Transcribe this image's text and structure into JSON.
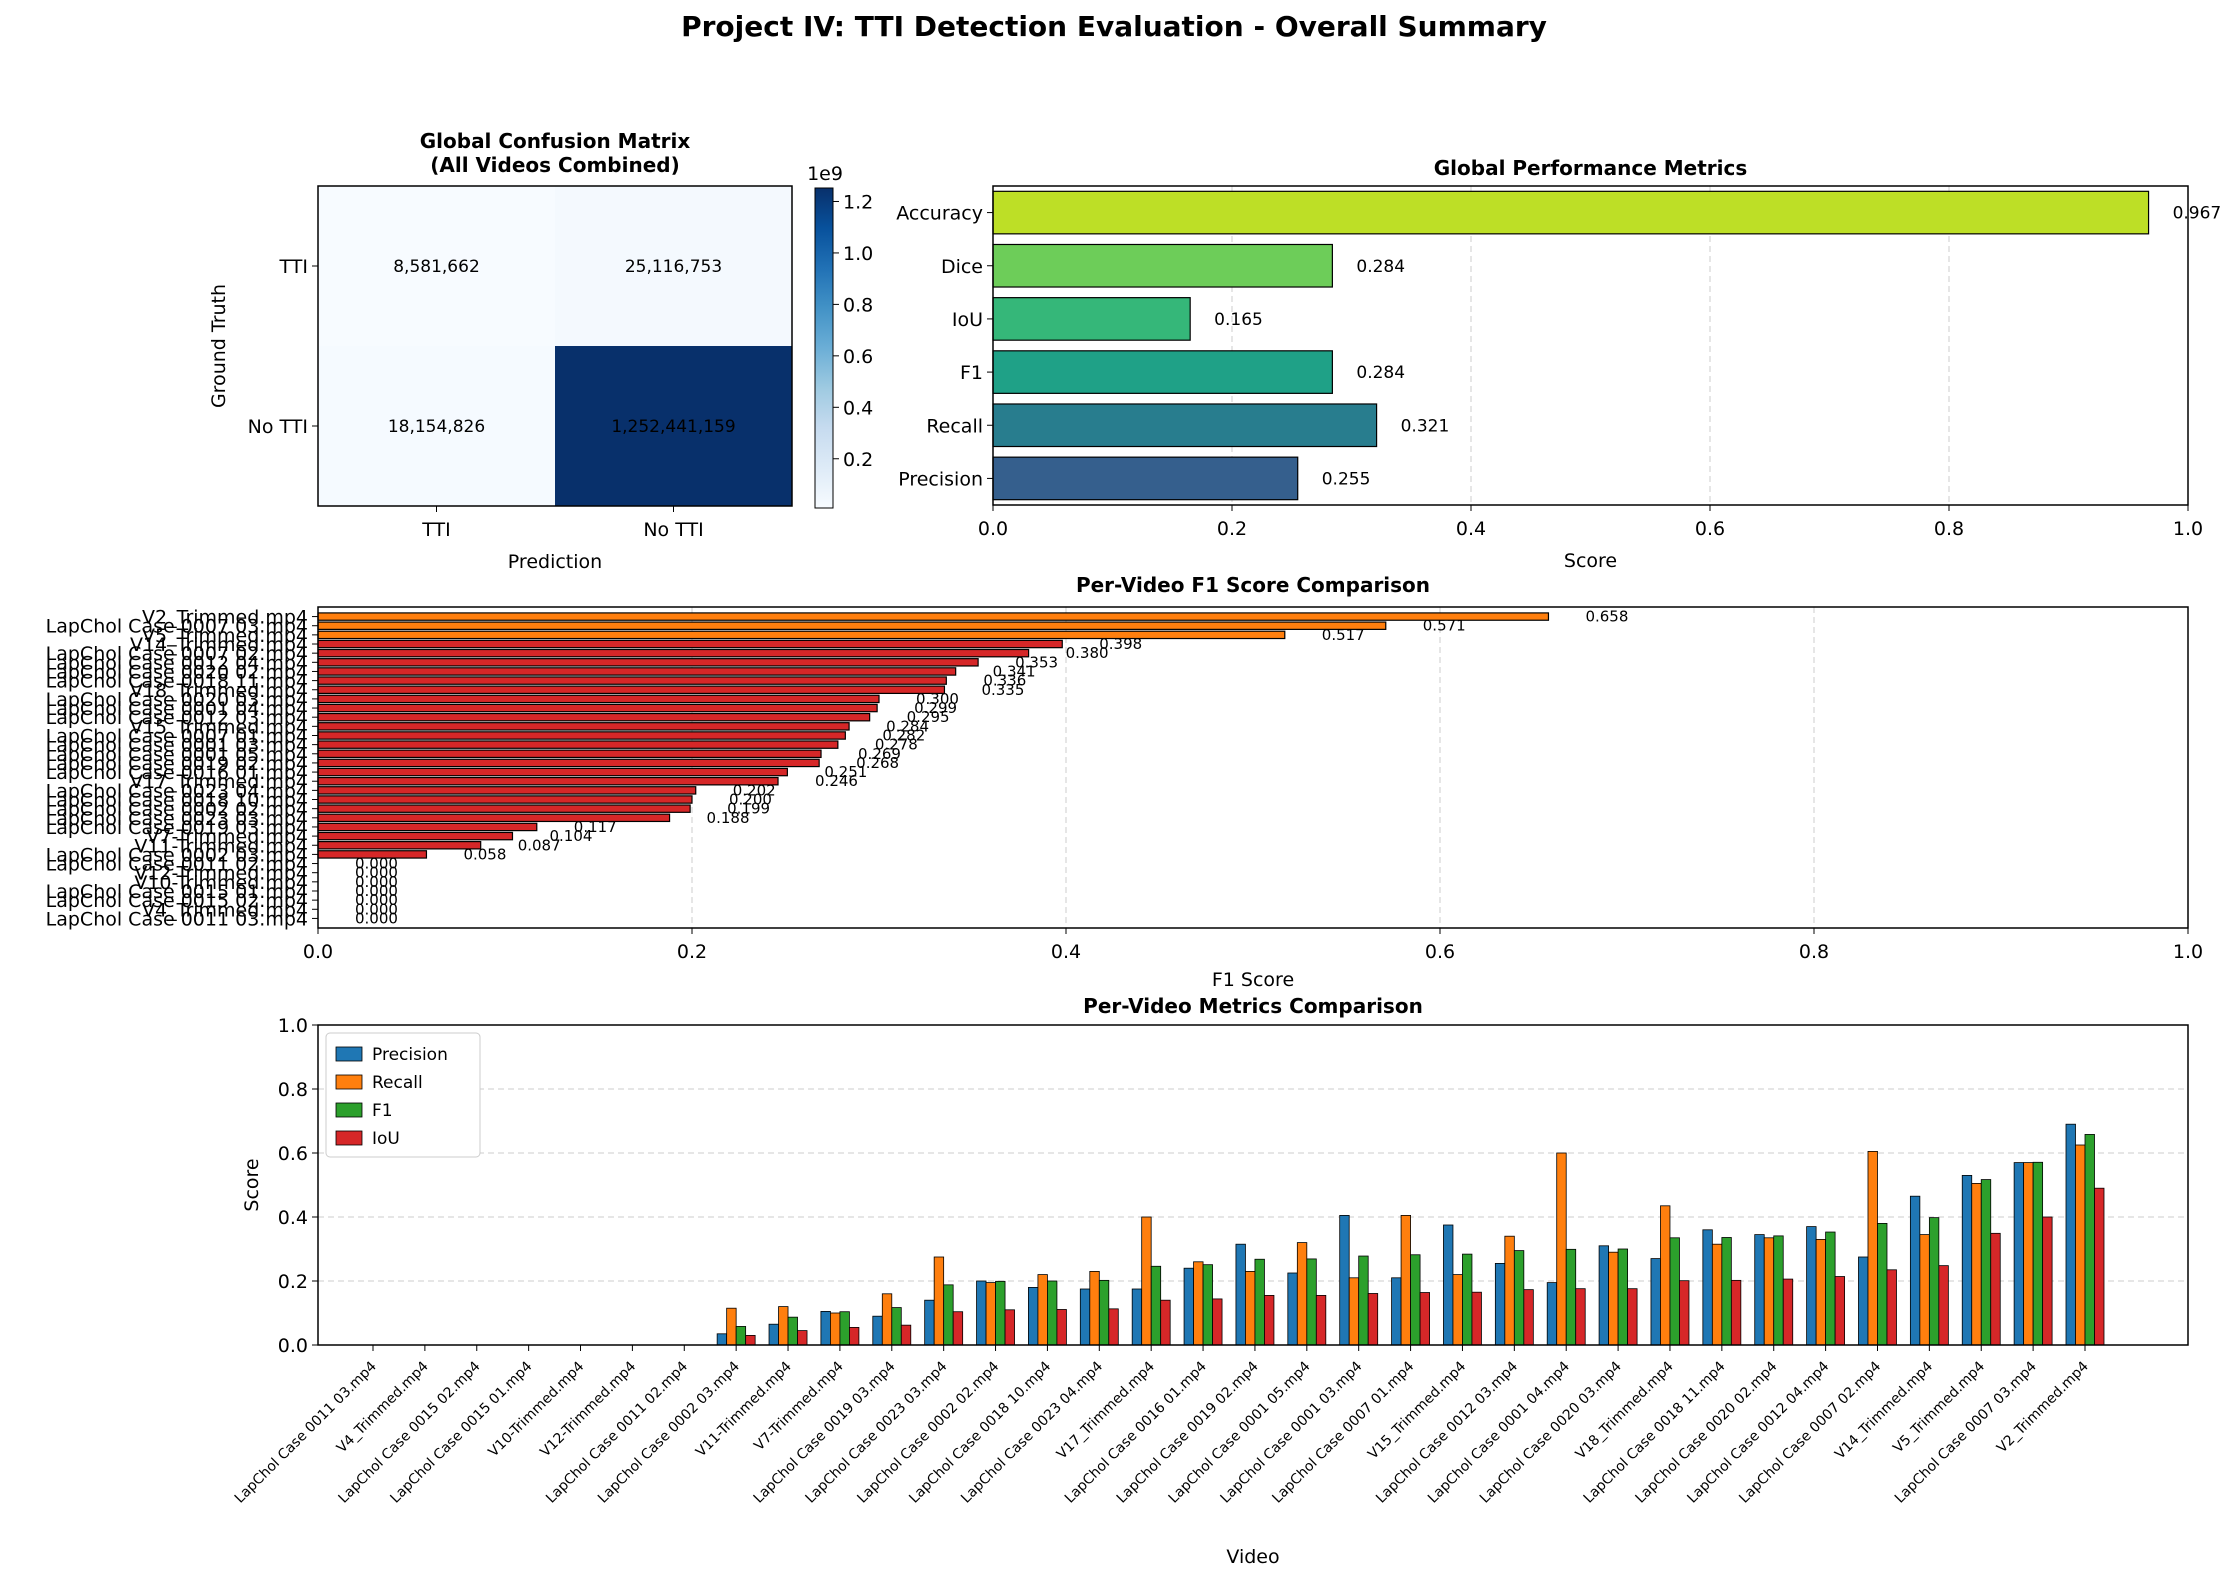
{
  "title": "Project IV: TTI Detection Evaluation - Overall Summary",
  "chart_data": [
    {
      "type": "heatmap",
      "title": "Global Confusion Matrix\n(All Videos Combined)",
      "xlabel": "Prediction",
      "ylabel": "Ground Truth",
      "row_labels": [
        "TTI",
        "No TTI"
      ],
      "col_labels": [
        "TTI",
        "No TTI"
      ],
      "values": [
        [
          8581662,
          25116753
        ],
        [
          18154826,
          1252441159
        ]
      ],
      "cell_labels": [
        [
          "8,581,662",
          "25,116,753"
        ],
        [
          "18,154,826",
          "1,252,441,159"
        ]
      ],
      "colorbar": {
        "multiplier": "1e9",
        "ticks": [
          "0.2",
          "0.4",
          "0.6",
          "0.8",
          "1.0",
          "1.2"
        ],
        "range": [
          0.0086,
          1.2524
        ]
      },
      "colormap": [
        "#f7fbff",
        "#deebf7",
        "#c6dbef",
        "#9ecae1",
        "#6baed6",
        "#4292c6",
        "#2171b5",
        "#08519c",
        "#08306b"
      ]
    },
    {
      "type": "bar",
      "orientation": "horizontal",
      "title": "Global Performance Metrics",
      "xlabel": "Score",
      "xlim": [
        0,
        1
      ],
      "x_ticks": [
        "0.0",
        "0.2",
        "0.4",
        "0.6",
        "0.8",
        "1.0"
      ],
      "grid": true,
      "categories": [
        "Precision",
        "Recall",
        "F1",
        "IoU",
        "Dice",
        "Accuracy"
      ],
      "values": [
        0.255,
        0.321,
        0.284,
        0.165,
        0.284,
        0.967
      ],
      "value_labels": [
        "0.255",
        "0.321",
        "0.284",
        "0.165",
        "0.284",
        "0.967"
      ],
      "colors": [
        "#355f8d",
        "#287d8e",
        "#1fa187",
        "#35b779",
        "#6dcd59",
        "#bddf26"
      ]
    },
    {
      "type": "bar",
      "orientation": "horizontal",
      "title": "Per-Video F1 Score Comparison",
      "xlabel": "F1 Score",
      "xlim": [
        0,
        1
      ],
      "x_ticks": [
        "0.0",
        "0.2",
        "0.4",
        "0.6",
        "0.8",
        "1.0"
      ],
      "grid": true,
      "categories": [
        "LapChol Case 0011 03.mp4",
        "V4_Trimmed.mp4",
        "LapChol Case 0015 02.mp4",
        "LapChol Case 0015 01.mp4",
        "V10-Trimmed.mp4",
        "V12-Trimmed.mp4",
        "LapChol Case 0011 02.mp4",
        "LapChol Case 0002 03.mp4",
        "V11-Trimmed.mp4",
        "V7-Trimmed.mp4",
        "LapChol Case 0019 03.mp4",
        "LapChol Case 0023 03.mp4",
        "LapChol Case 0002 02.mp4",
        "LapChol Case 0018 10.mp4",
        "LapChol Case 0023 04.mp4",
        "V17_Trimmed.mp4",
        "LapChol Case 0016 01.mp4",
        "LapChol Case 0019 02.mp4",
        "LapChol Case 0001 05.mp4",
        "LapChol Case 0001 03.mp4",
        "LapChol Case 0007 01.mp4",
        "V15_Trimmed.mp4",
        "LapChol Case 0012 03.mp4",
        "LapChol Case 0001 04.mp4",
        "LapChol Case 0020 03.mp4",
        "V18_Trimmed.mp4",
        "LapChol Case 0018 11.mp4",
        "LapChol Case 0020 02.mp4",
        "LapChol Case 0012 04.mp4",
        "LapChol Case 0007 02.mp4",
        "V14_Trimmed.mp4",
        "V5_Trimmed.mp4",
        "LapChol Case 0007 03.mp4",
        "V2_Trimmed.mp4"
      ],
      "values": [
        0.0,
        0.0,
        0.0,
        0.0,
        0.0,
        0.0,
        0.0,
        0.058,
        0.087,
        0.104,
        0.117,
        0.188,
        0.199,
        0.2,
        0.202,
        0.246,
        0.251,
        0.268,
        0.269,
        0.278,
        0.282,
        0.284,
        0.295,
        0.299,
        0.3,
        0.335,
        0.336,
        0.341,
        0.353,
        0.38,
        0.398,
        0.517,
        0.571,
        0.658
      ],
      "value_labels": [
        "0.000",
        "0.000",
        "0.000",
        "0.000",
        "0.000",
        "0.000",
        "0.000",
        "0.058",
        "0.087",
        "0.104",
        "0.117",
        "0.188",
        "0.199",
        "0.200",
        "0.202",
        "0.246",
        "0.251",
        "0.268",
        "0.269",
        "0.278",
        "0.282",
        "0.284",
        "0.295",
        "0.299",
        "0.300",
        "0.335",
        "0.336",
        "0.341",
        "0.353",
        "0.380",
        "0.398",
        "0.517",
        "0.571",
        "0.658"
      ],
      "bar_colors": {
        "high": "#ff7f0e",
        "low": "#d62728"
      }
    },
    {
      "type": "bar",
      "title": "Per-Video Metrics Comparison",
      "xlabel": "Video",
      "ylabel": "Score",
      "ylim": [
        0,
        1
      ],
      "y_ticks": [
        "0.0",
        "0.2",
        "0.4",
        "0.6",
        "0.8",
        "1.0"
      ],
      "grid": true,
      "legend_position": "top-left",
      "categories": [
        "LapChol Case 0011 03.mp4",
        "V4_Trimmed.mp4",
        "LapChol Case 0015 02.mp4",
        "LapChol Case 0015 01.mp4",
        "V10-Trimmed.mp4",
        "V12-Trimmed.mp4",
        "LapChol Case 0011 02.mp4",
        "LapChol Case 0002 03.mp4",
        "V11-Trimmed.mp4",
        "V7-Trimmed.mp4",
        "LapChol Case 0019 03.mp4",
        "LapChol Case 0023 03.mp4",
        "LapChol Case 0002 02.mp4",
        "LapChol Case 0018 10.mp4",
        "LapChol Case 0023 04.mp4",
        "V17_Trimmed.mp4",
        "LapChol Case 0016 01.mp4",
        "LapChol Case 0019 02.mp4",
        "LapChol Case 0001 05.mp4",
        "LapChol Case 0001 03.mp4",
        "LapChol Case 0007 01.mp4",
        "V15_Trimmed.mp4",
        "LapChol Case 0012 03.mp4",
        "LapChol Case 0001 04.mp4",
        "LapChol Case 0020 03.mp4",
        "V18_Trimmed.mp4",
        "LapChol Case 0018 11.mp4",
        "LapChol Case 0020 02.mp4",
        "LapChol Case 0012 04.mp4",
        "LapChol Case 0007 02.mp4",
        "V14_Trimmed.mp4",
        "V5_Trimmed.mp4",
        "LapChol Case 0007 03.mp4",
        "V2_Trimmed.mp4"
      ],
      "series": [
        {
          "name": "Precision",
          "color": "#1f77b4",
          "values": [
            0,
            0,
            0,
            0,
            0,
            0,
            0,
            0.035,
            0.065,
            0.105,
            0.09,
            0.14,
            0.2,
            0.18,
            0.175,
            0.175,
            0.24,
            0.315,
            0.225,
            0.405,
            0.21,
            0.375,
            0.255,
            0.195,
            0.31,
            0.27,
            0.36,
            0.345,
            0.37,
            0.275,
            0.465,
            0.53,
            0.57,
            0.69
          ]
        },
        {
          "name": "Recall",
          "color": "#ff7f0e",
          "values": [
            0,
            0,
            0,
            0,
            0,
            0,
            0,
            0.115,
            0.12,
            0.1,
            0.16,
            0.275,
            0.195,
            0.22,
            0.23,
            0.4,
            0.26,
            0.23,
            0.32,
            0.21,
            0.405,
            0.22,
            0.34,
            0.6,
            0.29,
            0.435,
            0.315,
            0.335,
            0.33,
            0.605,
            0.345,
            0.505,
            0.57,
            0.625
          ]
        },
        {
          "name": "F1",
          "color": "#2ca02c",
          "values": [
            0,
            0,
            0,
            0,
            0,
            0,
            0,
            0.058,
            0.087,
            0.104,
            0.117,
            0.188,
            0.199,
            0.2,
            0.202,
            0.246,
            0.251,
            0.268,
            0.269,
            0.278,
            0.282,
            0.284,
            0.295,
            0.299,
            0.3,
            0.335,
            0.336,
            0.341,
            0.353,
            0.38,
            0.398,
            0.517,
            0.571,
            0.658
          ]
        },
        {
          "name": "IoU",
          "color": "#d62728",
          "values": [
            0,
            0,
            0,
            0,
            0,
            0,
            0,
            0.03,
            0.045,
            0.055,
            0.062,
            0.104,
            0.11,
            0.111,
            0.113,
            0.14,
            0.144,
            0.155,
            0.155,
            0.161,
            0.164,
            0.165,
            0.173,
            0.176,
            0.176,
            0.201,
            0.202,
            0.206,
            0.214,
            0.235,
            0.248,
            0.349,
            0.4,
            0.49
          ]
        }
      ]
    }
  ]
}
